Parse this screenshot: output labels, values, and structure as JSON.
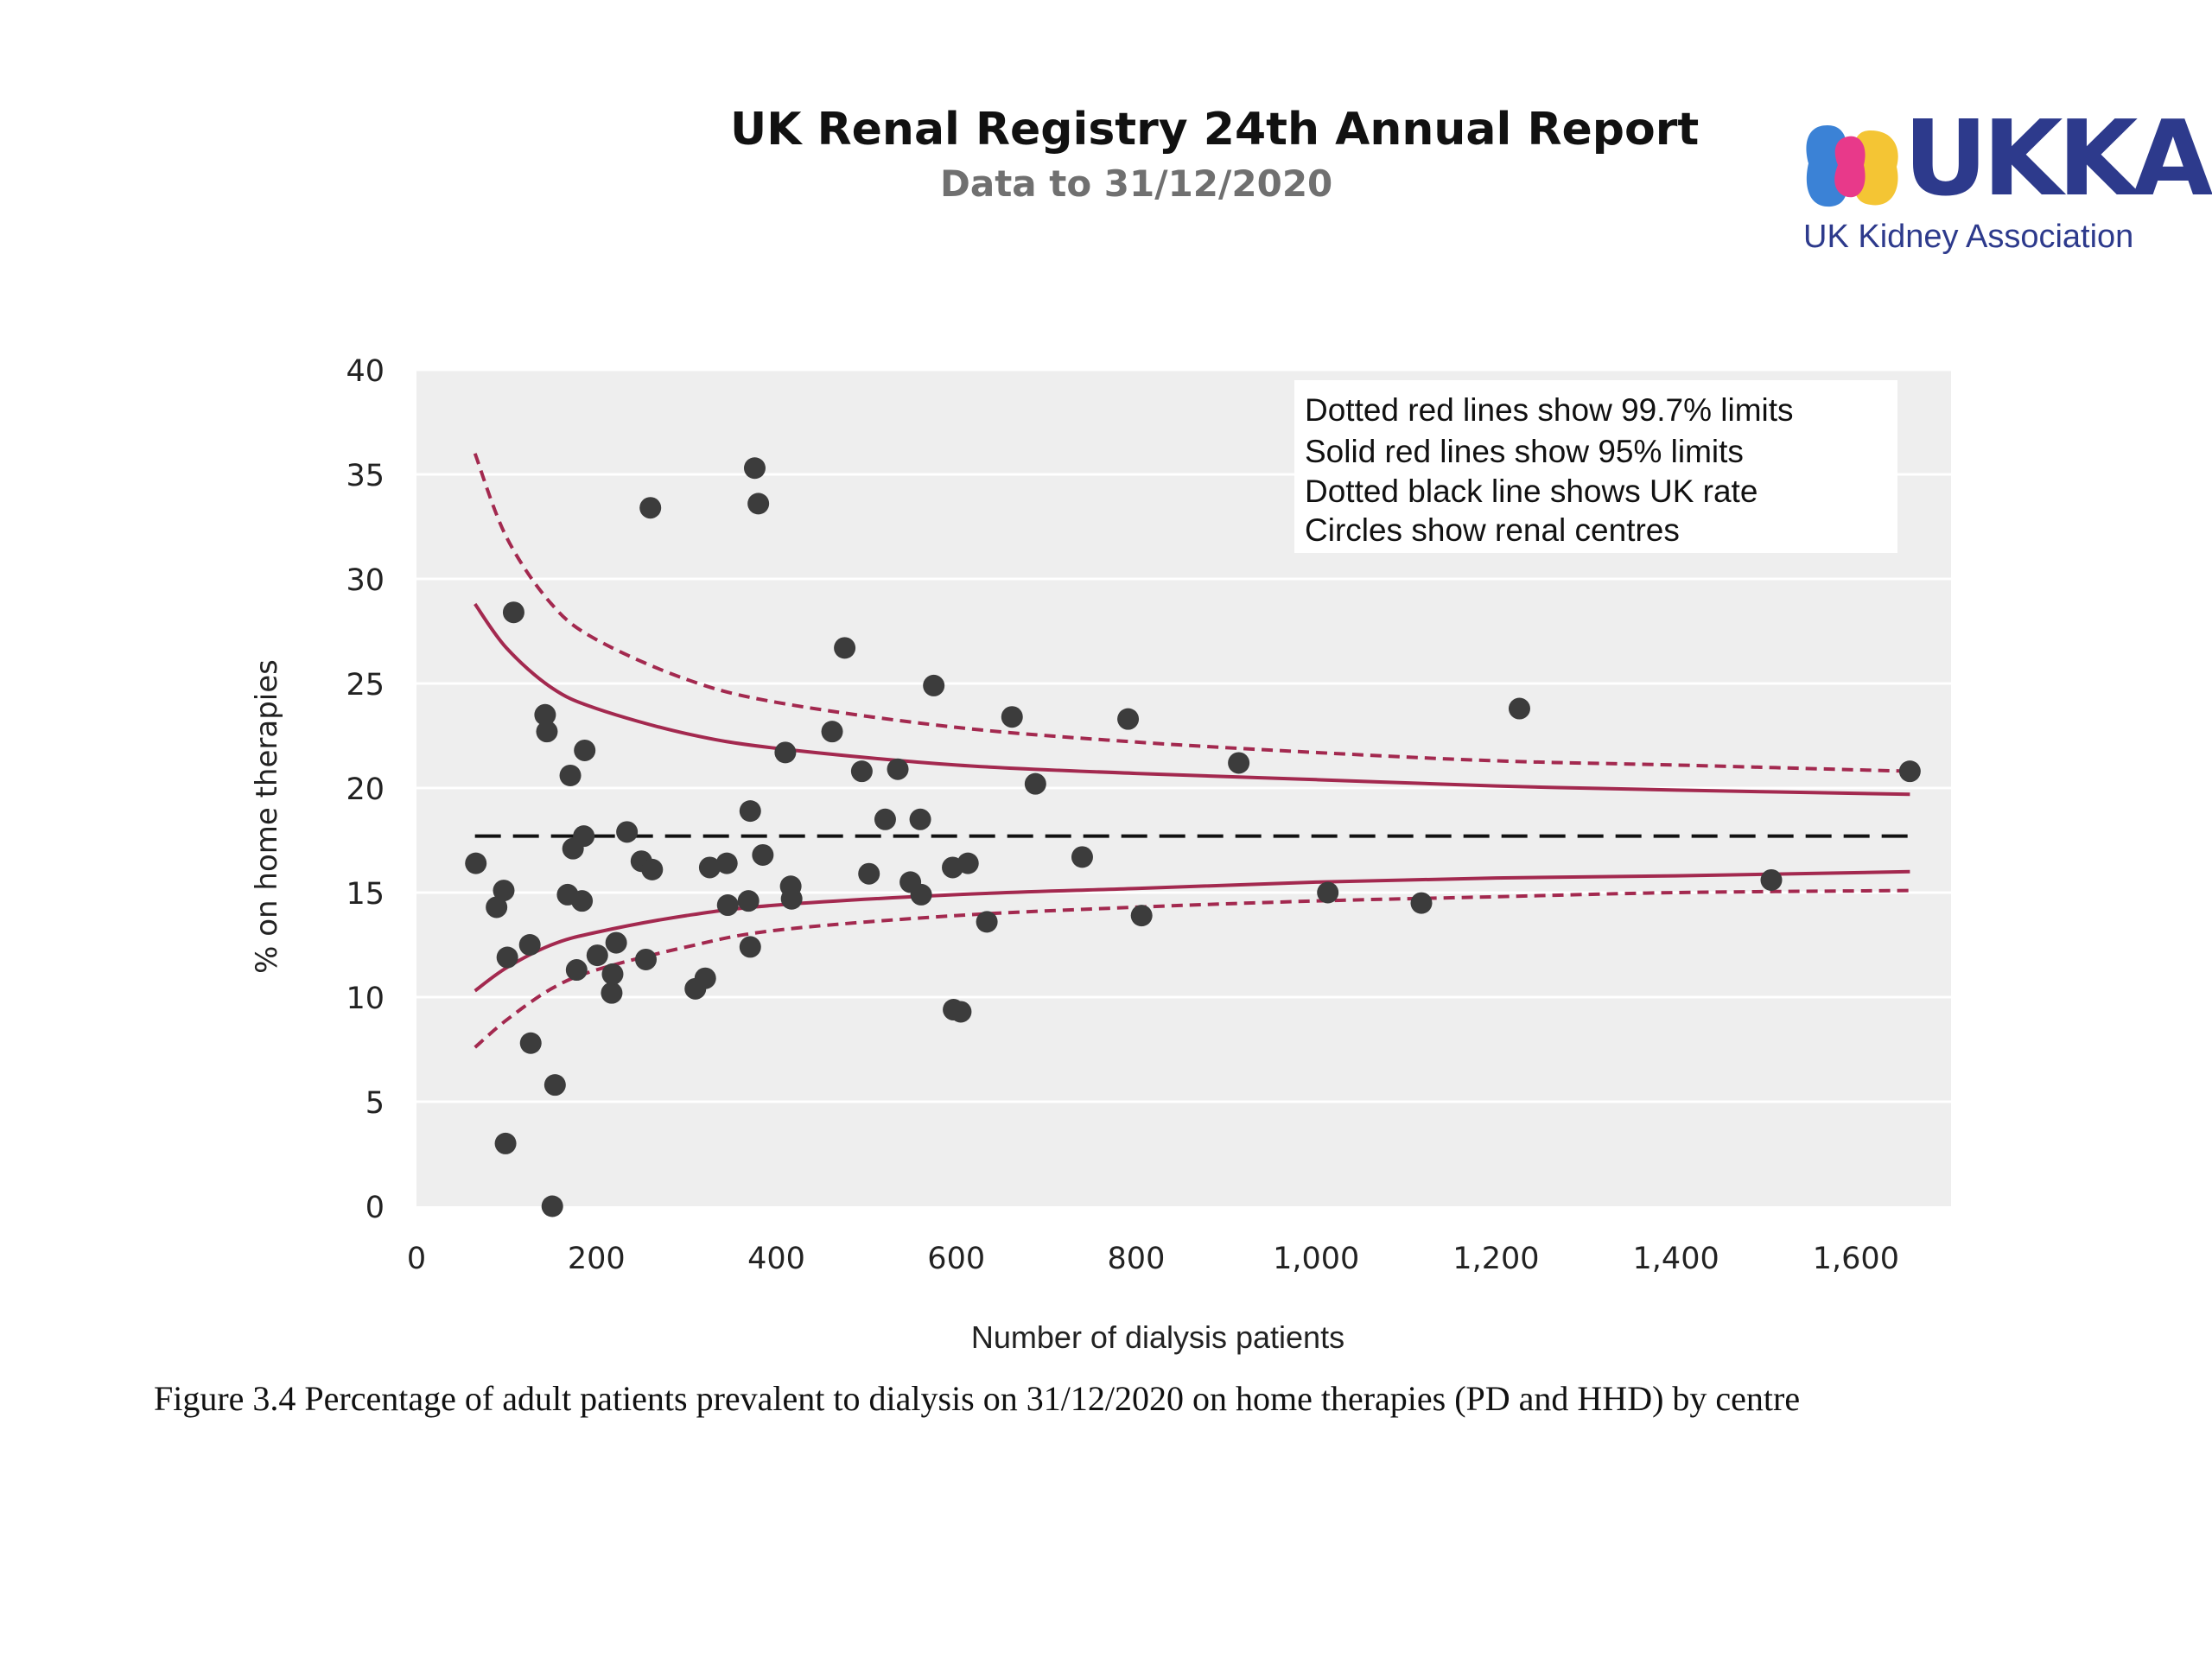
{
  "header": {
    "title": "UK Renal Registry 24th Annual Report",
    "subtitle": "Data to 31/12/2020"
  },
  "logo": {
    "wordmark": "UKKA",
    "name": "UK Kidney Association",
    "colors": [
      "#3b82d6",
      "#e8398a",
      "#f4c534",
      "#2d3a8c"
    ]
  },
  "caption": "Figure 3.4 Percentage of adult patients prevalent to dialysis on 31/12/2020 on home therapies (PD and HHD) by centre",
  "colors": {
    "plot_background": "#eeeeee",
    "limit_line": "#a3294f",
    "uk_rate_line": "#111111",
    "point": "#3c3c3c"
  },
  "chart_data": {
    "type": "scatter",
    "xlabel": "Number of dialysis patients",
    "ylabel": "% on home therapies",
    "xlim": [
      0,
      1700
    ],
    "ylim": [
      0,
      40
    ],
    "xticks": [
      {
        "value": 0,
        "label": "0"
      },
      {
        "value": 200,
        "label": "200"
      },
      {
        "value": 400,
        "label": "400"
      },
      {
        "value": 600,
        "label": "600"
      },
      {
        "value": 800,
        "label": "800"
      },
      {
        "value": 1000,
        "label": "1,000"
      },
      {
        "value": 1200,
        "label": "1,200"
      },
      {
        "value": 1400,
        "label": "1,400"
      },
      {
        "value": 1600,
        "label": "1,600"
      }
    ],
    "yticks": [
      {
        "value": 0,
        "label": "0"
      },
      {
        "value": 5,
        "label": "5"
      },
      {
        "value": 10,
        "label": "10"
      },
      {
        "value": 15,
        "label": "15"
      },
      {
        "value": 20,
        "label": "20"
      },
      {
        "value": 25,
        "label": "25"
      },
      {
        "value": 30,
        "label": "30"
      },
      {
        "value": 35,
        "label": "35"
      },
      {
        "value": 40,
        "label": "40"
      }
    ],
    "grid": "horizontal",
    "legend_position": "top-right",
    "legend_notes": [
      "Dotted red lines show 99.7% limits",
      "Solid red lines show 95% limits",
      "Dotted black line shows UK rate",
      "Circles show renal centres"
    ],
    "uk_rate": 17.7,
    "limit_range": [
      65,
      1660
    ],
    "limits": {
      "upper_997": {
        "x": [
          65,
          100,
          150,
          200,
          300,
          400,
          600,
          800,
          1000,
          1200,
          1400,
          1660
        ],
        "y": [
          36.0,
          32.0,
          28.8,
          27.1,
          25.2,
          24.1,
          22.9,
          22.2,
          21.7,
          21.3,
          21.1,
          20.8
        ]
      },
      "upper_95": {
        "x": [
          65,
          100,
          150,
          200,
          300,
          400,
          600,
          800,
          1000,
          1200,
          1400,
          1660
        ],
        "y": [
          28.8,
          26.7,
          24.8,
          23.8,
          22.6,
          21.9,
          21.1,
          20.7,
          20.4,
          20.1,
          19.9,
          19.7
        ]
      },
      "lower_95": {
        "x": [
          65,
          100,
          150,
          200,
          300,
          400,
          600,
          800,
          1000,
          1200,
          1400,
          1660
        ],
        "y": [
          10.3,
          11.4,
          12.5,
          13.1,
          13.9,
          14.4,
          14.9,
          15.2,
          15.5,
          15.7,
          15.8,
          16.0
        ]
      },
      "lower_997": {
        "x": [
          65,
          100,
          150,
          200,
          300,
          400,
          600,
          800,
          1000,
          1200,
          1400,
          1660
        ],
        "y": [
          7.6,
          8.9,
          10.4,
          11.3,
          12.4,
          13.2,
          13.9,
          14.3,
          14.6,
          14.8,
          15.0,
          15.1
        ]
      }
    },
    "points": [
      {
        "x": 66,
        "y": 16.4
      },
      {
        "x": 89,
        "y": 14.3
      },
      {
        "x": 97,
        "y": 15.1
      },
      {
        "x": 99,
        "y": 3.0
      },
      {
        "x": 101,
        "y": 11.9
      },
      {
        "x": 108,
        "y": 28.4
      },
      {
        "x": 126,
        "y": 12.5
      },
      {
        "x": 127,
        "y": 7.8
      },
      {
        "x": 143,
        "y": 23.5
      },
      {
        "x": 145,
        "y": 22.7
      },
      {
        "x": 151,
        "y": 0.0
      },
      {
        "x": 154,
        "y": 5.8
      },
      {
        "x": 168,
        "y": 14.9
      },
      {
        "x": 171,
        "y": 20.6
      },
      {
        "x": 174,
        "y": 17.1
      },
      {
        "x": 178,
        "y": 11.3
      },
      {
        "x": 184,
        "y": 14.6
      },
      {
        "x": 186,
        "y": 17.7
      },
      {
        "x": 187,
        "y": 21.8
      },
      {
        "x": 201,
        "y": 12.0
      },
      {
        "x": 217,
        "y": 10.2
      },
      {
        "x": 218,
        "y": 11.1
      },
      {
        "x": 222,
        "y": 12.6
      },
      {
        "x": 234,
        "y": 17.9
      },
      {
        "x": 250,
        "y": 16.5
      },
      {
        "x": 255,
        "y": 11.8
      },
      {
        "x": 260,
        "y": 33.4
      },
      {
        "x": 262,
        "y": 16.1
      },
      {
        "x": 310,
        "y": 10.4
      },
      {
        "x": 321,
        "y": 10.9
      },
      {
        "x": 326,
        "y": 16.2
      },
      {
        "x": 345,
        "y": 16.4
      },
      {
        "x": 346,
        "y": 14.4
      },
      {
        "x": 369,
        "y": 14.6
      },
      {
        "x": 371,
        "y": 12.4
      },
      {
        "x": 371,
        "y": 18.9
      },
      {
        "x": 376,
        "y": 35.3
      },
      {
        "x": 380,
        "y": 33.6
      },
      {
        "x": 385,
        "y": 16.8
      },
      {
        "x": 410,
        "y": 21.7
      },
      {
        "x": 416,
        "y": 15.3
      },
      {
        "x": 417,
        "y": 14.7
      },
      {
        "x": 462,
        "y": 22.7
      },
      {
        "x": 476,
        "y": 26.7
      },
      {
        "x": 495,
        "y": 20.8
      },
      {
        "x": 503,
        "y": 15.9
      },
      {
        "x": 521,
        "y": 18.5
      },
      {
        "x": 535,
        "y": 20.9
      },
      {
        "x": 549,
        "y": 15.5
      },
      {
        "x": 560,
        "y": 18.5
      },
      {
        "x": 561,
        "y": 14.9
      },
      {
        "x": 575,
        "y": 24.9
      },
      {
        "x": 596,
        "y": 16.2
      },
      {
        "x": 597,
        "y": 9.4
      },
      {
        "x": 605,
        "y": 9.3
      },
      {
        "x": 613,
        "y": 16.4
      },
      {
        "x": 634,
        "y": 13.6
      },
      {
        "x": 662,
        "y": 23.4
      },
      {
        "x": 688,
        "y": 20.2
      },
      {
        "x": 740,
        "y": 16.7
      },
      {
        "x": 791,
        "y": 23.3
      },
      {
        "x": 806,
        "y": 13.9
      },
      {
        "x": 914,
        "y": 21.2
      },
      {
        "x": 1013,
        "y": 15.0
      },
      {
        "x": 1117,
        "y": 14.5
      },
      {
        "x": 1226,
        "y": 23.8
      },
      {
        "x": 1506,
        "y": 15.6
      },
      {
        "x": 1660,
        "y": 20.8
      }
    ]
  }
}
